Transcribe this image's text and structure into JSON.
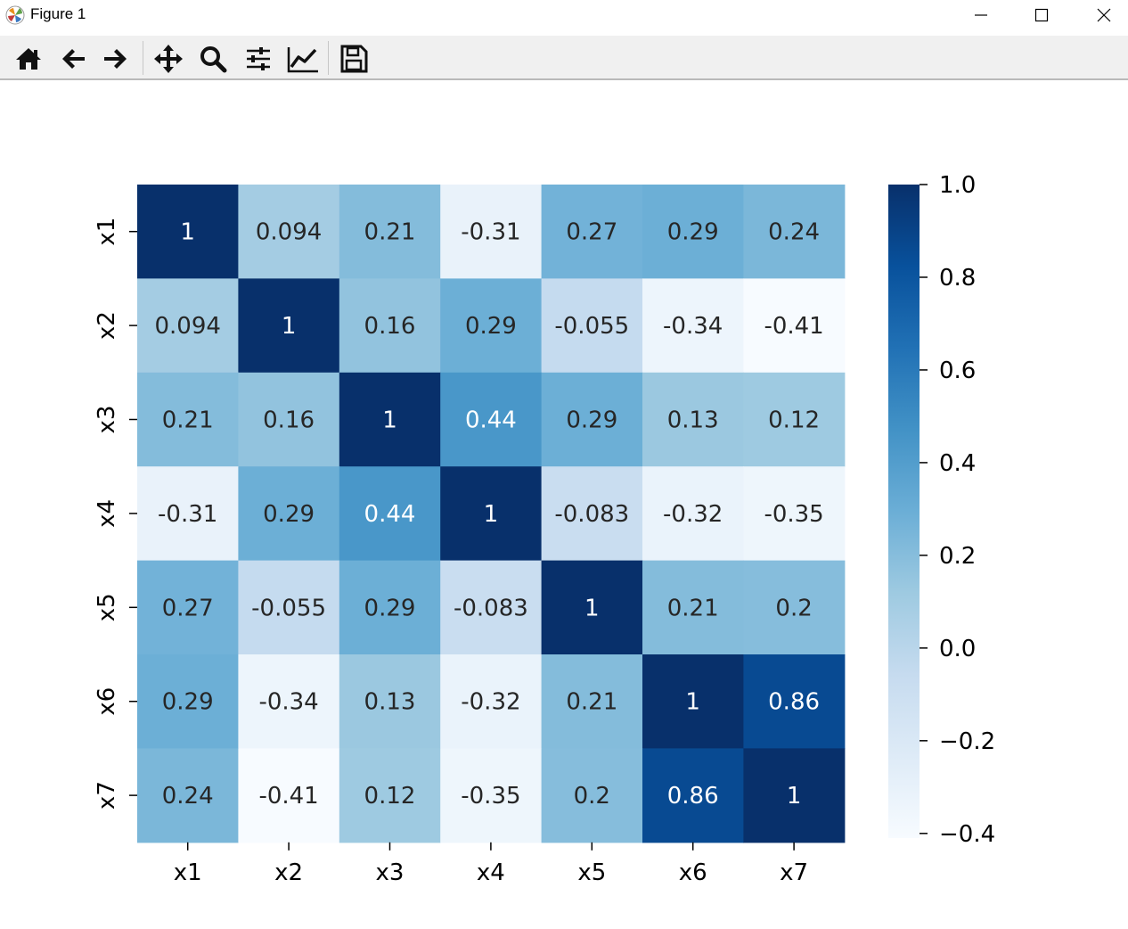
{
  "window": {
    "title": "Figure 1"
  },
  "toolbar": {
    "buttons": [
      {
        "name": "home-icon"
      },
      {
        "name": "back-icon"
      },
      {
        "name": "forward-icon"
      },
      {
        "name": "pan-icon"
      },
      {
        "name": "zoom-icon"
      },
      {
        "name": "configure-subplots-icon"
      },
      {
        "name": "edit-axis-icon"
      },
      {
        "name": "save-icon"
      }
    ]
  },
  "chart_data": {
    "type": "heatmap",
    "colormap": "Blues",
    "row_labels": [
      "x1",
      "x2",
      "x3",
      "x4",
      "x5",
      "x6",
      "x7"
    ],
    "col_labels": [
      "x1",
      "x2",
      "x3",
      "x4",
      "x5",
      "x6",
      "x7"
    ],
    "values": [
      [
        1,
        0.094,
        0.21,
        -0.31,
        0.27,
        0.29,
        0.24
      ],
      [
        0.094,
        1,
        0.16,
        0.29,
        -0.055,
        -0.34,
        -0.41
      ],
      [
        0.21,
        0.16,
        1,
        0.44,
        0.29,
        0.13,
        0.12
      ],
      [
        -0.31,
        0.29,
        0.44,
        1,
        -0.083,
        -0.32,
        -0.35
      ],
      [
        0.27,
        -0.055,
        0.29,
        -0.083,
        1,
        0.21,
        0.2
      ],
      [
        0.29,
        -0.34,
        0.13,
        -0.32,
        0.21,
        1,
        0.86
      ],
      [
        0.24,
        -0.41,
        0.12,
        -0.35,
        0.2,
        0.86,
        1
      ]
    ],
    "vmin": -0.41,
    "vmax": 1.0,
    "colorbar_ticks": [
      "1.0",
      "0.8",
      "0.6",
      "0.4",
      "0.2",
      "0.0",
      "−0.2",
      "−0.4"
    ],
    "colorbar_tick_values": [
      1.0,
      0.8,
      0.6,
      0.4,
      0.2,
      0.0,
      -0.2,
      -0.4
    ]
  }
}
